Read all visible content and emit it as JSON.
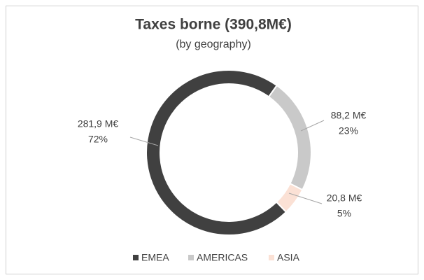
{
  "chart_data": {
    "type": "donut",
    "title": "Taxes borne (390,8M€)",
    "subtitle": "(by geography)",
    "categories": [
      "EMEA",
      "AMERICAS",
      "ASIA"
    ],
    "values": [
      281.9,
      88.2,
      20.8
    ],
    "value_labels": [
      "281,9 M€",
      "88,2 M€",
      "20,8 M€"
    ],
    "percentages": [
      72,
      23,
      5
    ],
    "percentage_labels": [
      "72%",
      "23%",
      "5%"
    ],
    "colors": [
      "#404040",
      "#c9c9c9",
      "#fbe1d5"
    ],
    "legend": "bottom"
  }
}
